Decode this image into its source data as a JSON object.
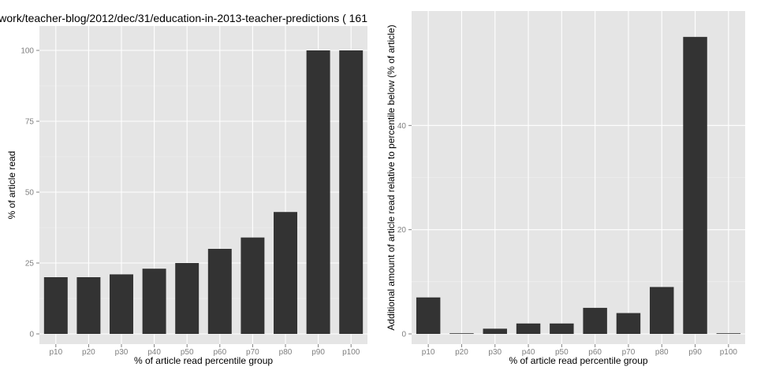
{
  "chart_data": [
    {
      "type": "bar",
      "title": "work/teacher-blog/2012/dec/31/education-in-2013-teacher-predictions ( 161",
      "xlabel": "% of article read percentile group",
      "ylabel": "% of article read",
      "categories": [
        "p10",
        "p20",
        "p30",
        "p40",
        "p50",
        "p60",
        "p70",
        "p80",
        "p90",
        "p100"
      ],
      "values": [
        20,
        20,
        21,
        23,
        25,
        30,
        34,
        43,
        100,
        100
      ],
      "ylim": [
        0,
        105
      ],
      "yticks": [
        0,
        25,
        50,
        75,
        100
      ],
      "grid": true,
      "bar_color": "#333333",
      "panel_color": "#e5e5e5"
    },
    {
      "type": "bar",
      "title": "",
      "xlabel": "% of article read percentile group",
      "ylabel": "Additional amount of article read relative to percentile below (% of article)",
      "categories": [
        "p10",
        "p20",
        "p30",
        "p40",
        "p50",
        "p60",
        "p70",
        "p80",
        "p90",
        "p100"
      ],
      "values": [
        7,
        0,
        1,
        2,
        2,
        5,
        4,
        9,
        57,
        0
      ],
      "ylim": [
        0,
        60
      ],
      "yticks": [
        0,
        20,
        40
      ],
      "grid": true,
      "bar_color": "#333333",
      "panel_color": "#e5e5e5"
    }
  ]
}
